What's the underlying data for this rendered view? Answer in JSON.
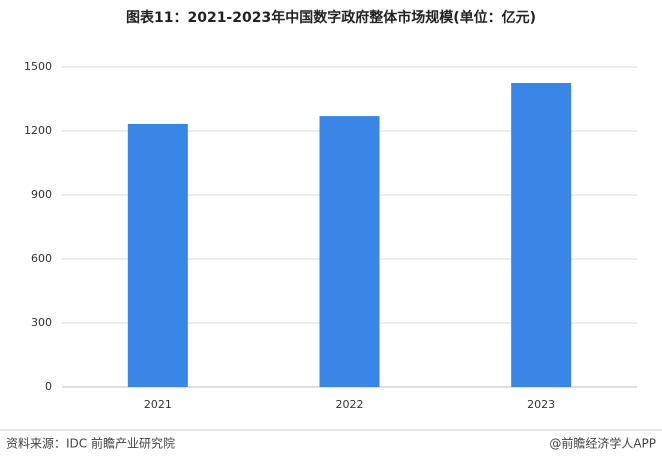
{
  "chart_data": {
    "type": "bar",
    "title": "图表11：2021-2023年中国数字政府整体市场规模(单位：亿元)",
    "categories": [
      "2021",
      "2022",
      "2023"
    ],
    "values": [
      1233,
      1270,
      1425
    ],
    "color": "#3a86e6",
    "ylim": [
      0,
      1500
    ],
    "yticks": [
      0,
      300,
      600,
      900,
      1200,
      1500
    ],
    "grid": true,
    "source": "资料来源：IDC 前瞻产业研究院",
    "credit": "@前瞻经济学人APP"
  }
}
